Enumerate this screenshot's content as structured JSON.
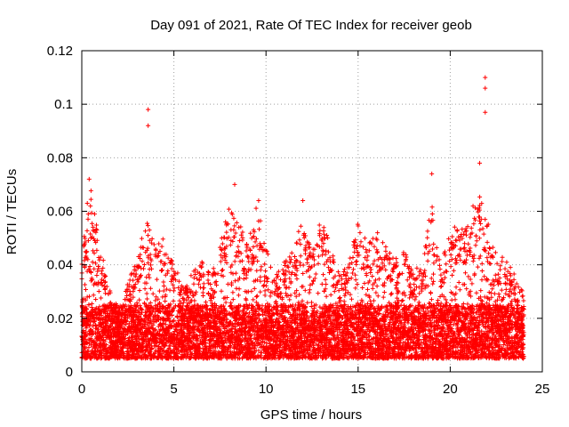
{
  "chart_data": {
    "type": "scatter",
    "title": "Day 091 of 2021, Rate Of TEC Index for receiver geob",
    "xlabel": "GPS time / hours",
    "ylabel": "ROTI / TECUs",
    "xlim": [
      0,
      25
    ],
    "ylim": [
      0,
      0.12
    ],
    "xticks": [
      0,
      5,
      10,
      15,
      20,
      25
    ],
    "yticks": [
      0,
      0.02,
      0.04,
      0.06,
      0.08,
      0.1,
      0.12
    ],
    "xtick_labels": [
      "0",
      "5",
      "10",
      "15",
      "20",
      "25"
    ],
    "ytick_labels": [
      "0",
      "0.02",
      "0.04",
      "0.06",
      "0.08",
      "0.1",
      "0.12"
    ],
    "grid": true,
    "marker": "+",
    "color": "#ff0000",
    "data_x_range": [
      0,
      24
    ],
    "typical_band": [
      0.005,
      0.025
    ],
    "notable_points": [
      {
        "x": 0.4,
        "y": 0.072
      },
      {
        "x": 0.3,
        "y": 0.063
      },
      {
        "x": 3.6,
        "y": 0.098
      },
      {
        "x": 3.6,
        "y": 0.092
      },
      {
        "x": 8.3,
        "y": 0.07
      },
      {
        "x": 9.6,
        "y": 0.064
      },
      {
        "x": 12.0,
        "y": 0.064
      },
      {
        "x": 19.0,
        "y": 0.074
      },
      {
        "x": 21.6,
        "y": 0.078
      },
      {
        "x": 21.9,
        "y": 0.11
      },
      {
        "x": 21.9,
        "y": 0.106
      },
      {
        "x": 21.9,
        "y": 0.097
      }
    ],
    "envelope": [
      {
        "x": 0.0,
        "y": 0.045
      },
      {
        "x": 0.5,
        "y": 0.065
      },
      {
        "x": 1.0,
        "y": 0.045
      },
      {
        "x": 1.5,
        "y": 0.03
      },
      {
        "x": 2.0,
        "y": 0.022
      },
      {
        "x": 2.5,
        "y": 0.032
      },
      {
        "x": 3.0,
        "y": 0.04
      },
      {
        "x": 3.5,
        "y": 0.055
      },
      {
        "x": 4.0,
        "y": 0.045
      },
      {
        "x": 4.5,
        "y": 0.048
      },
      {
        "x": 5.0,
        "y": 0.04
      },
      {
        "x": 5.5,
        "y": 0.03
      },
      {
        "x": 6.0,
        "y": 0.035
      },
      {
        "x": 6.5,
        "y": 0.04
      },
      {
        "x": 7.0,
        "y": 0.035
      },
      {
        "x": 7.5,
        "y": 0.045
      },
      {
        "x": 8.0,
        "y": 0.06
      },
      {
        "x": 8.5,
        "y": 0.055
      },
      {
        "x": 9.0,
        "y": 0.045
      },
      {
        "x": 9.5,
        "y": 0.06
      },
      {
        "x": 10.0,
        "y": 0.045
      },
      {
        "x": 10.5,
        "y": 0.035
      },
      {
        "x": 11.0,
        "y": 0.04
      },
      {
        "x": 11.5,
        "y": 0.045
      },
      {
        "x": 12.0,
        "y": 0.055
      },
      {
        "x": 12.5,
        "y": 0.045
      },
      {
        "x": 13.0,
        "y": 0.055
      },
      {
        "x": 13.5,
        "y": 0.045
      },
      {
        "x": 14.0,
        "y": 0.035
      },
      {
        "x": 14.5,
        "y": 0.04
      },
      {
        "x": 15.0,
        "y": 0.055
      },
      {
        "x": 15.5,
        "y": 0.045
      },
      {
        "x": 16.0,
        "y": 0.055
      },
      {
        "x": 16.5,
        "y": 0.045
      },
      {
        "x": 17.0,
        "y": 0.04
      },
      {
        "x": 17.5,
        "y": 0.045
      },
      {
        "x": 18.0,
        "y": 0.035
      },
      {
        "x": 18.5,
        "y": 0.04
      },
      {
        "x": 19.0,
        "y": 0.06
      },
      {
        "x": 19.5,
        "y": 0.04
      },
      {
        "x": 20.0,
        "y": 0.05
      },
      {
        "x": 20.5,
        "y": 0.055
      },
      {
        "x": 21.0,
        "y": 0.055
      },
      {
        "x": 21.5,
        "y": 0.065
      },
      {
        "x": 22.0,
        "y": 0.055
      },
      {
        "x": 22.5,
        "y": 0.045
      },
      {
        "x": 23.0,
        "y": 0.04
      },
      {
        "x": 23.5,
        "y": 0.035
      },
      {
        "x": 24.0,
        "y": 0.03
      }
    ]
  }
}
